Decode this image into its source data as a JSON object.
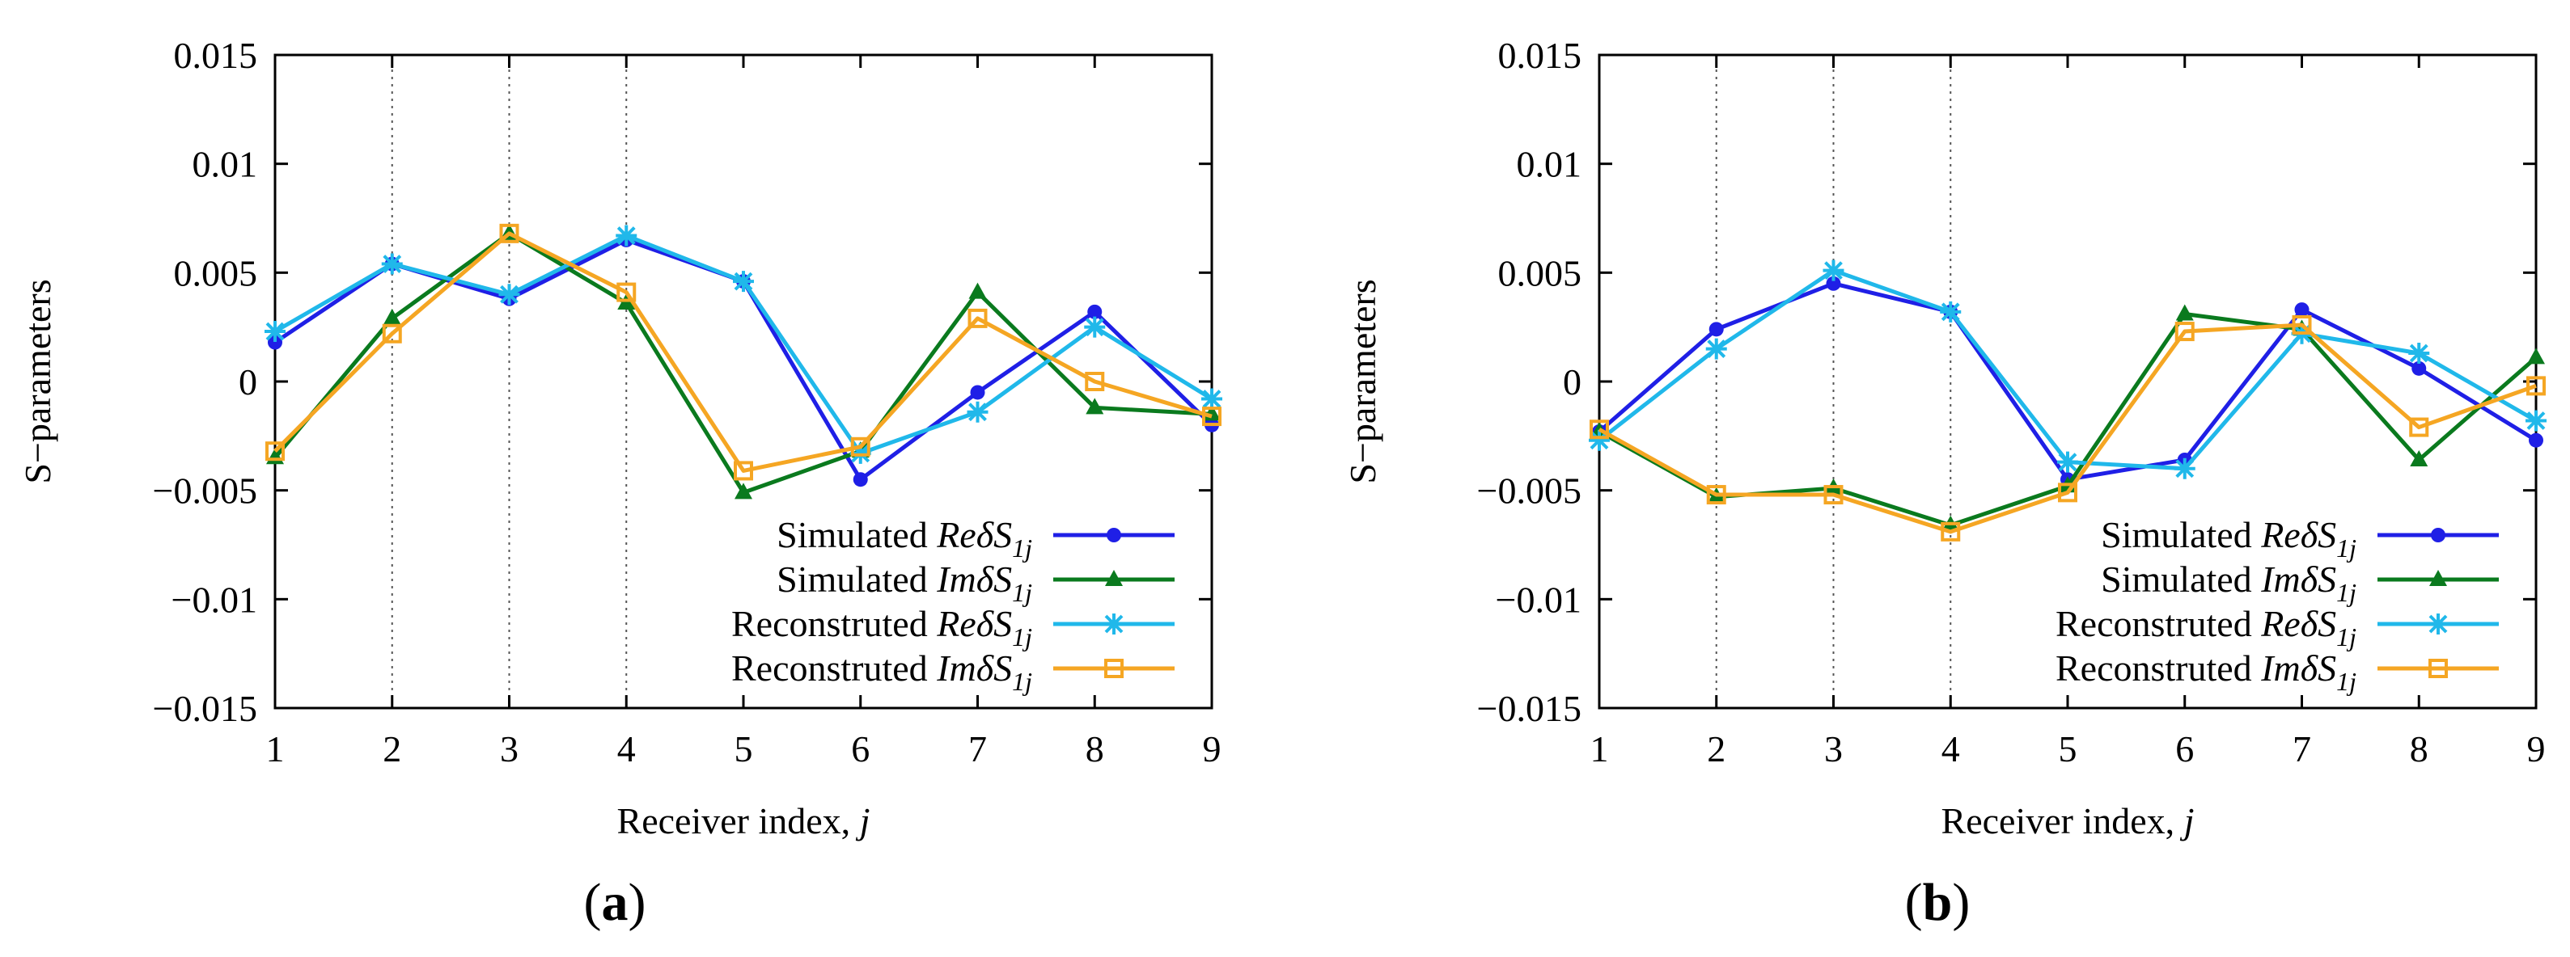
{
  "chart_data": [
    {
      "type": "line",
      "panel_label": "(a)",
      "xlabel": "Receiver index, j",
      "ylabel": "S−parameters",
      "xlim": [
        1,
        9
      ],
      "ylim": [
        -0.015,
        0.015
      ],
      "x": [
        1,
        2,
        3,
        4,
        5,
        6,
        7,
        8,
        9
      ],
      "x_tick_labels": [
        "1",
        "2",
        "3",
        "4",
        "5",
        "6",
        "7",
        "8",
        "9"
      ],
      "y_ticks": [
        -0.015,
        -0.01,
        -0.005,
        0,
        0.005,
        0.01,
        0.015
      ],
      "y_tick_labels": [
        "−0.015",
        "−0.01",
        "−0.005",
        "0",
        "0.005",
        "0.01",
        "0.015"
      ],
      "grid": "vertical dotted lines at x = 2, 3, 4",
      "legend_position": "bottom-right",
      "series": [
        {
          "name": "Simulated ReδS1j",
          "label_prefix": "Simulated ",
          "label_math": "ReδS",
          "label_sub": "1j",
          "color": "#1f1fe6",
          "marker": "circle",
          "values": [
            0.0018,
            0.0054,
            0.0038,
            0.0065,
            0.0046,
            -0.0045,
            -0.0005,
            0.0032,
            -0.002
          ]
        },
        {
          "name": "Simulated ImδS1j",
          "label_prefix": "Simulated ",
          "label_math": "ImδS",
          "label_sub": "1j",
          "color": "#0a7a1e",
          "marker": "triangle",
          "values": [
            -0.0035,
            0.0029,
            0.0068,
            0.0036,
            -0.0051,
            -0.0032,
            0.0041,
            -0.0012,
            -0.0015
          ]
        },
        {
          "name": "Reconstruted ReδS1j",
          "label_prefix": "Reconstruted ",
          "label_math": "ReδS",
          "label_sub": "1j",
          "color": "#20b8ea",
          "marker": "star",
          "values": [
            0.0023,
            0.0054,
            0.004,
            0.0067,
            0.0046,
            -0.0033,
            -0.0014,
            0.0025,
            -0.0008
          ]
        },
        {
          "name": "Reconstruted ImδS1j",
          "label_prefix": "Reconstruted ",
          "label_math": "ImδS",
          "label_sub": "1j",
          "color": "#f5a623",
          "marker": "square",
          "values": [
            -0.0032,
            0.0022,
            0.0068,
            0.0041,
            -0.0041,
            -0.003,
            0.0029,
            0.0,
            -0.0016
          ]
        }
      ]
    },
    {
      "type": "line",
      "panel_label": "(b)",
      "xlabel": "Receiver index, j",
      "ylabel": "S−parameters",
      "xlim": [
        1,
        9
      ],
      "ylim": [
        -0.015,
        0.015
      ],
      "x": [
        1,
        2,
        3,
        4,
        5,
        6,
        7,
        8,
        9
      ],
      "x_tick_labels": [
        "1",
        "2",
        "3",
        "4",
        "5",
        "6",
        "7",
        "8",
        "9"
      ],
      "y_ticks": [
        -0.015,
        -0.01,
        -0.005,
        0,
        0.005,
        0.01,
        0.015
      ],
      "y_tick_labels": [
        "−0.015",
        "−0.01",
        "−0.005",
        "0",
        "0.005",
        "0.01",
        "0.015"
      ],
      "grid": "vertical dotted lines at x = 2, 3, 4",
      "legend_position": "bottom-right",
      "series": [
        {
          "name": "Simulated ReδS1j",
          "label_prefix": "Simulated ",
          "label_math": "ReδS",
          "label_sub": "1j",
          "color": "#1f1fe6",
          "marker": "circle",
          "values": [
            -0.0023,
            0.0024,
            0.0045,
            0.0032,
            -0.0045,
            -0.0036,
            0.0033,
            0.0006,
            -0.0027
          ]
        },
        {
          "name": "Simulated ImδS1j",
          "label_prefix": "Simulated ",
          "label_math": "ImδS",
          "label_sub": "1j",
          "color": "#0a7a1e",
          "marker": "triangle",
          "values": [
            -0.0023,
            -0.0053,
            -0.0049,
            -0.0066,
            -0.0048,
            0.0031,
            0.0024,
            -0.0036,
            0.0011
          ]
        },
        {
          "name": "Reconstruted ReδS1j",
          "label_prefix": "Reconstruted ",
          "label_math": "ReδS",
          "label_sub": "1j",
          "color": "#20b8ea",
          "marker": "star",
          "values": [
            -0.0027,
            0.0015,
            0.0051,
            0.0032,
            -0.0037,
            -0.004,
            0.0022,
            0.0013,
            -0.0018
          ]
        },
        {
          "name": "Reconstruted ImδS1j",
          "label_prefix": "Reconstruted ",
          "label_math": "ImδS",
          "label_sub": "1j",
          "color": "#f5a623",
          "marker": "square",
          "values": [
            -0.0022,
            -0.0052,
            -0.0052,
            -0.0069,
            -0.0051,
            0.0023,
            0.0026,
            -0.0021,
            -0.0002
          ]
        }
      ]
    }
  ]
}
